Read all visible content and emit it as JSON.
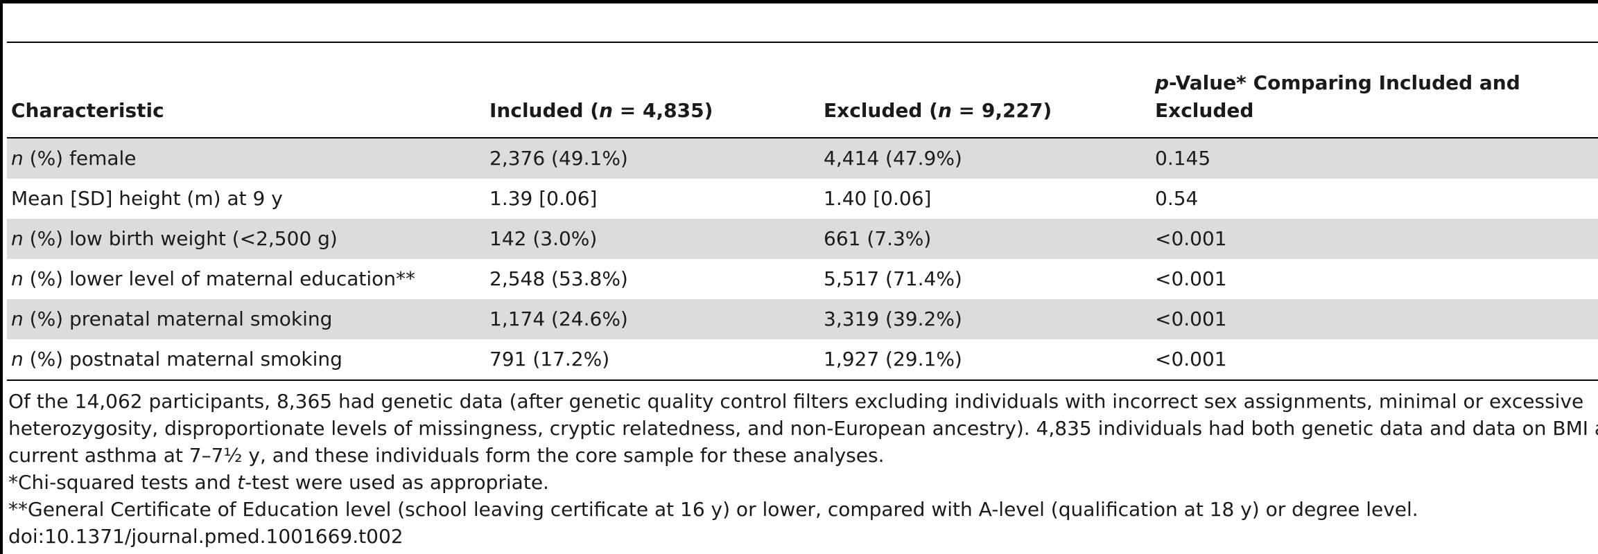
{
  "table": {
    "headers": {
      "characteristic": "Characteristic",
      "included": "Included (",
      "included_n": "n",
      "included_value": " = 4,835)",
      "excluded": "Excluded (",
      "excluded_n": "n",
      "excluded_value": " = 9,227)",
      "pvalue_p": "p",
      "pvalue_line1": "-Value* Comparing Included and",
      "pvalue_line2": "Excluded"
    },
    "rows": [
      {
        "prefix": "n",
        "label": " (%) female",
        "included": "2,376 (49.1%)",
        "excluded": "4,414 (47.9%)",
        "pvalue": "0.145"
      },
      {
        "prefix": "",
        "label": "Mean [SD] height (m) at 9 y",
        "included": "1.39 [0.06]",
        "excluded": "1.40 [0.06]",
        "pvalue": "0.54"
      },
      {
        "prefix": "n",
        "label": " (%) low birth weight (<2,500 g)",
        "included": "142 (3.0%)",
        "excluded": "661 (7.3%)",
        "pvalue": "<0.001"
      },
      {
        "prefix": "n",
        "label": " (%) lower level of maternal education**",
        "included": "2,548 (53.8%)",
        "excluded": "5,517 (71.4%)",
        "pvalue": "<0.001"
      },
      {
        "prefix": "n",
        "label": " (%) prenatal maternal smoking",
        "included": "1,174 (24.6%)",
        "excluded": "3,319 (39.2%)",
        "pvalue": "<0.001"
      },
      {
        "prefix": "n",
        "label": " (%) postnatal maternal smoking",
        "included": "791 (17.2%)",
        "excluded": "1,927 (29.1%)",
        "pvalue": "<0.001"
      }
    ]
  },
  "footnotes": {
    "line1": "Of the 14,062 participants, 8,365 had genetic data (after genetic quality control filters excluding individuals with incorrect sex assignments, minimal or excessive",
    "line2": "heterozygosity, disproportionate levels of missingness, cryptic relatedness, and non-European ancestry). 4,835 individuals had both genetic data and data on BMI and",
    "line3": "current asthma at 7–7½ y, and these individuals form the core sample for these analyses.",
    "chi_star": "*Chi-squared tests and ",
    "chi_t": "t",
    "chi_rest": "-test were used as appropriate.",
    "gce": "**General Certificate of Education level (school leaving certificate at 16 y) or lower, compared with A-level (qualification at 18 y) or degree level.",
    "doi": "doi:10.1371/journal.pmed.1001669.t002"
  }
}
